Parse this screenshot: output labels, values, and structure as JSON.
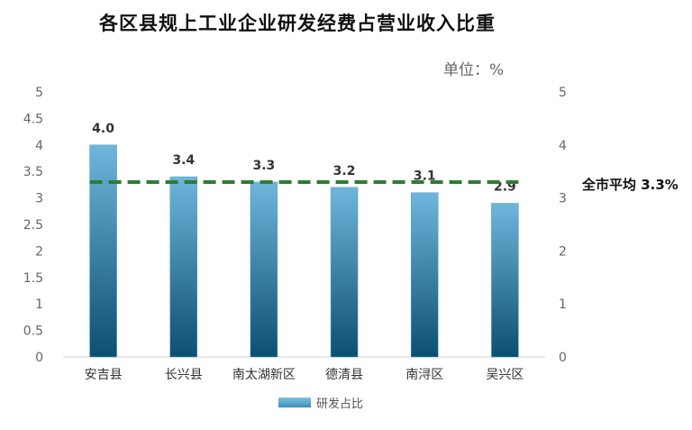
{
  "title": "各区县规上工业企业研发经费占营业收入比重",
  "unit_label": "单位：%",
  "average_label": "全市平均 3.3%",
  "colors": {
    "bar_top": "#6eb6dc",
    "bar_bottom": "#0b4f72",
    "average_line": "#2e7d32"
  },
  "chart_data": {
    "type": "bar",
    "categories": [
      "安吉县",
      "长兴县",
      "南太湖新区",
      "德清县",
      "南浔区",
      "吴兴区"
    ],
    "series": [
      {
        "name": "研发占比",
        "values": [
          4.0,
          3.4,
          3.3,
          3.2,
          3.1,
          2.9
        ]
      }
    ],
    "data_labels": [
      "4.0",
      "3.4",
      "3.3",
      "3.2",
      "3.1",
      "2.9"
    ],
    "average": 3.3,
    "ylim": [
      0,
      5
    ],
    "yticks": [
      "0",
      "0.5",
      "1",
      "1.5",
      "2",
      "2.5",
      "3",
      "3.5",
      "4",
      "4.5",
      "5"
    ],
    "y2ticks": [
      "0",
      "1",
      "2",
      "3",
      "4",
      "5"
    ],
    "legend_position": "bottom",
    "grid": false
  }
}
